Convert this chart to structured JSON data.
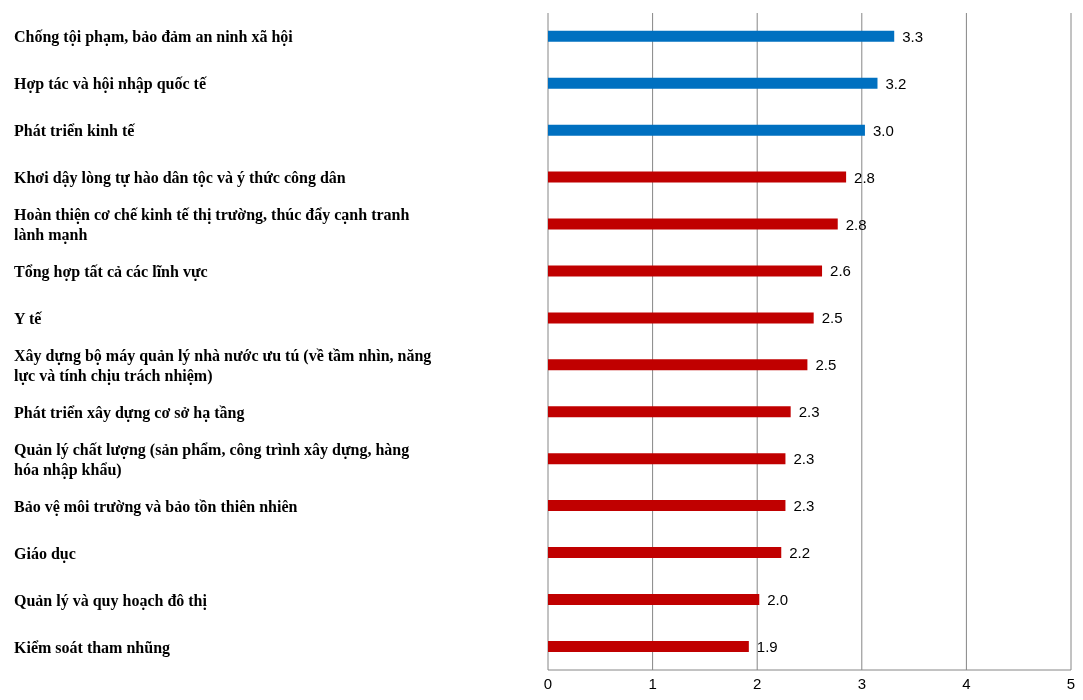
{
  "chart_data": {
    "type": "bar",
    "orientation": "horizontal",
    "categories": [
      "Chống tội phạm, bảo đảm an ninh xã hội",
      "Hợp tác và hội nhập quốc tế",
      "Phát triển kinh  tế",
      "Khơi dậy lòng tự hào dân tộc và ý thức công dân",
      "Hoàn thiện cơ chế kinh tế thị trường, thúc đẩy cạnh tranh lành mạnh",
      "Tổng hợp tất cả các lĩnh vực",
      "Y tế",
      "Xây dựng bộ máy quản lý nhà nước ưu tú (về tầm nhìn, năng lực và tính chịu trách nhiệm)",
      "Phát triển xây dựng cơ sở hạ tầng",
      "Quản lý  chất lượng (sản phẩm, công trình xây dựng, hàng hóa nhập khẩu)",
      "Bảo vệ môi trường và bảo tồn thiên nhiên",
      "Giáo dục",
      "Quản lý và quy hoạch đô thị",
      "Kiểm soát tham nhũng"
    ],
    "values": [
      3.31,
      3.15,
      3.03,
      2.85,
      2.77,
      2.62,
      2.54,
      2.48,
      2.32,
      2.27,
      2.27,
      2.23,
      2.02,
      1.92
    ],
    "value_labels": [
      "3.3",
      "3.2",
      "3.0",
      "2.8",
      "2.8",
      "2.6",
      "2.5",
      "2.5",
      "2.3",
      "2.3",
      "2.3",
      "2.2",
      "2.0",
      "1.9"
    ],
    "colors": [
      "#0070c0",
      "#0070c0",
      "#0070c0",
      "#c00000",
      "#c00000",
      "#c00000",
      "#c00000",
      "#c00000",
      "#c00000",
      "#c00000",
      "#c00000",
      "#c00000",
      "#c00000",
      "#c00000"
    ],
    "xlim": [
      0,
      5
    ],
    "xticks": [
      0,
      1,
      2,
      3,
      4,
      5
    ],
    "grid": "x",
    "legend": false
  }
}
